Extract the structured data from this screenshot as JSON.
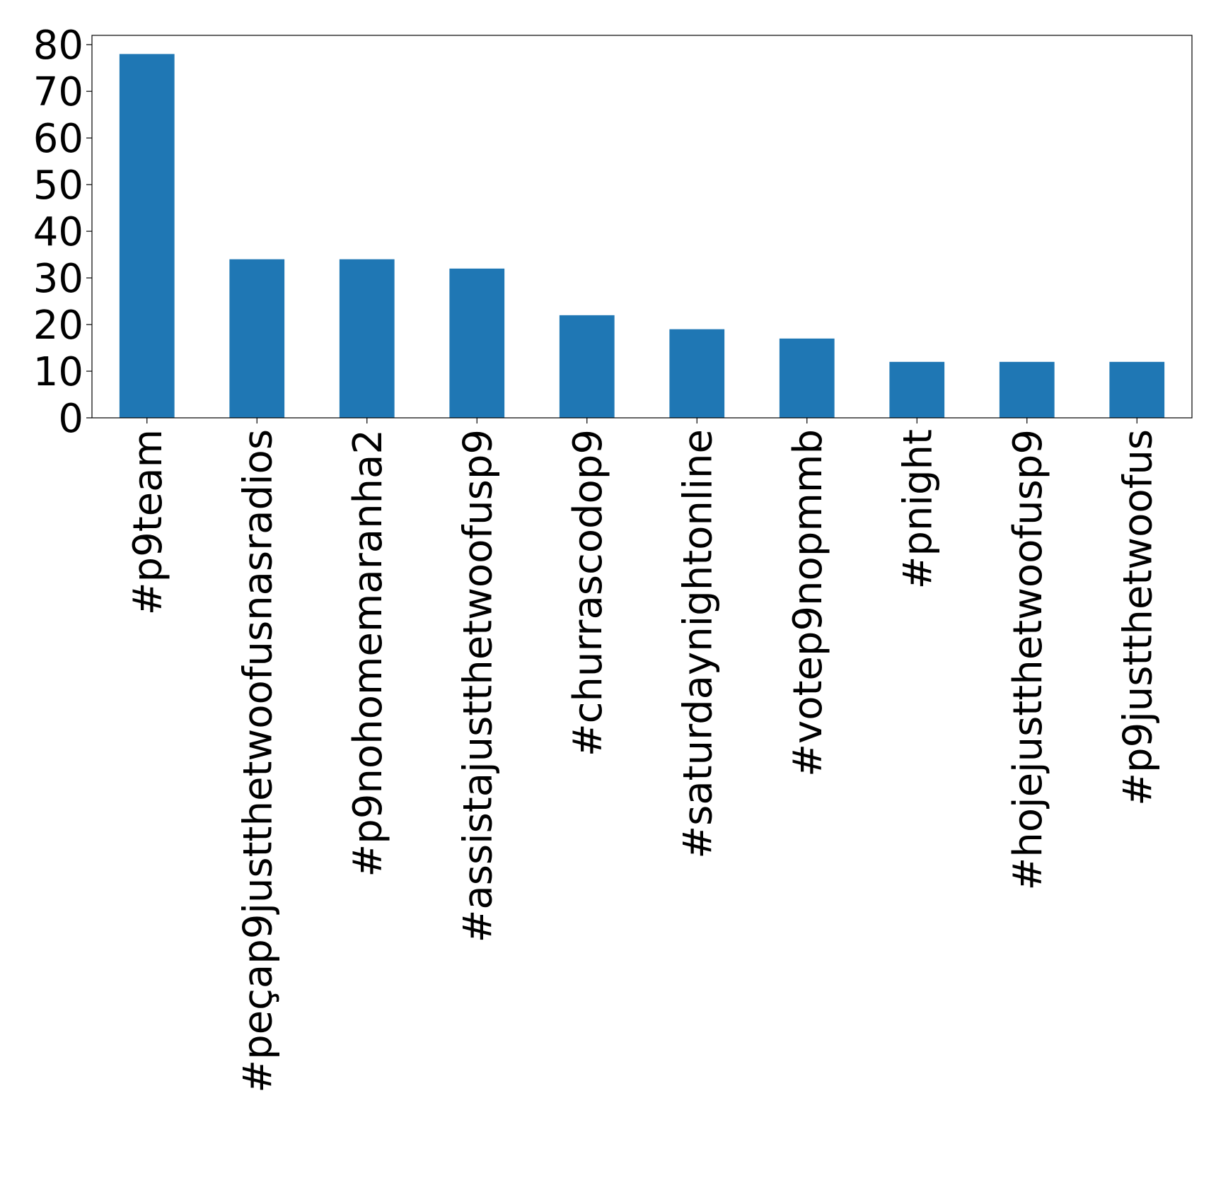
{
  "chart_data": {
    "type": "bar",
    "title": "",
    "xlabel": "",
    "ylabel": "",
    "categories": [
      "#p9team",
      "#peçap9justthetwoofusnasradios",
      "#p9nohomemaranha2",
      "#assistajustthetwoofusp9",
      "#churrascodop9",
      "#saturdaynightonline",
      "#votep9nopmmb",
      "#pnight",
      "#hojejustthetwoofusp9",
      "#p9justthetwoofus"
    ],
    "values": [
      78,
      34,
      34,
      32,
      22,
      19,
      17,
      12,
      12,
      12
    ],
    "ylim": [
      0,
      82
    ],
    "yticks": [
      0,
      10,
      20,
      30,
      40,
      50,
      60,
      70,
      80
    ],
    "grid": false,
    "legend": "none",
    "colors": {
      "bar": "#1f77b4",
      "axis": "#000000",
      "text": "#000000",
      "background": "#ffffff"
    }
  }
}
